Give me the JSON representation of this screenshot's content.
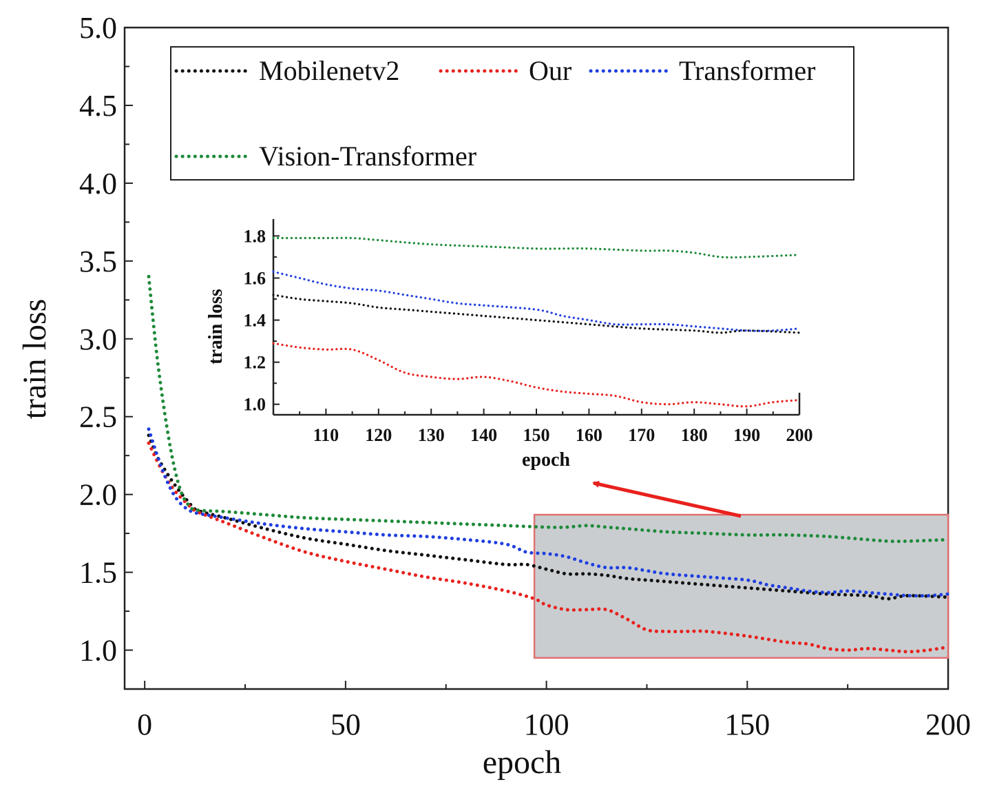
{
  "chart_data": [
    {
      "id": "main",
      "type": "line",
      "title": "",
      "xlabel": "epoch",
      "ylabel": "train loss",
      "xlim": [
        -5,
        200
      ],
      "ylim": [
        0.75,
        5.0
      ],
      "xticks": [
        "0",
        "50",
        "100",
        "150",
        "200"
      ],
      "yticks": [
        "1.0",
        "1.5",
        "2.0",
        "2.5",
        "3.0",
        "3.5",
        "4.0",
        "4.5",
        "5.0"
      ],
      "legend": {
        "placement": "top",
        "entries": [
          "Mobilenetv2",
          "Our",
          "Transformer",
          "Vision-Transformer"
        ]
      },
      "highlight_region": {
        "x": [
          97,
          200
        ],
        "y": [
          0.95,
          1.87
        ]
      },
      "series": [
        {
          "name": "Mobilenetv2",
          "color": "#111111",
          "x": [
            1,
            3,
            5,
            7,
            9,
            11,
            13,
            20,
            30,
            40,
            50,
            60,
            70,
            80,
            90,
            95,
            100,
            105,
            110,
            115,
            120,
            125,
            130,
            140,
            150,
            160,
            170,
            180,
            185,
            190,
            200
          ],
          "y": [
            2.38,
            2.25,
            2.16,
            2.08,
            2.01,
            1.95,
            1.9,
            1.85,
            1.78,
            1.72,
            1.68,
            1.64,
            1.61,
            1.58,
            1.55,
            1.55,
            1.52,
            1.49,
            1.49,
            1.48,
            1.46,
            1.45,
            1.44,
            1.42,
            1.4,
            1.38,
            1.36,
            1.35,
            1.33,
            1.35,
            1.34
          ]
        },
        {
          "name": "Our",
          "color": "#e8211d",
          "x": [
            1,
            3,
            5,
            7,
            9,
            11,
            13,
            20,
            30,
            40,
            50,
            60,
            70,
            80,
            90,
            97,
            100,
            105,
            110,
            115,
            120,
            125,
            130,
            135,
            140,
            150,
            160,
            165,
            170,
            175,
            180,
            185,
            190,
            195,
            200
          ],
          "y": [
            2.33,
            2.22,
            2.12,
            2.04,
            1.98,
            1.93,
            1.89,
            1.82,
            1.72,
            1.63,
            1.57,
            1.52,
            1.47,
            1.43,
            1.38,
            1.33,
            1.29,
            1.26,
            1.26,
            1.26,
            1.2,
            1.13,
            1.12,
            1.12,
            1.12,
            1.09,
            1.05,
            1.04,
            1.01,
            1.0,
            1.01,
            1.0,
            0.99,
            1.0,
            1.02
          ]
        },
        {
          "name": "Transformer",
          "color": "#1f3fe0",
          "x": [
            1,
            3,
            5,
            7,
            9,
            11,
            13,
            20,
            30,
            40,
            50,
            60,
            70,
            80,
            90,
            95,
            100,
            105,
            110,
            115,
            120,
            125,
            130,
            140,
            150,
            155,
            160,
            165,
            170,
            175,
            180,
            185,
            190,
            195,
            200
          ],
          "y": [
            2.42,
            2.26,
            2.12,
            2.01,
            1.94,
            1.9,
            1.88,
            1.85,
            1.81,
            1.78,
            1.76,
            1.74,
            1.73,
            1.71,
            1.68,
            1.63,
            1.62,
            1.6,
            1.56,
            1.53,
            1.53,
            1.51,
            1.49,
            1.47,
            1.45,
            1.42,
            1.4,
            1.38,
            1.37,
            1.38,
            1.37,
            1.36,
            1.35,
            1.35,
            1.36
          ]
        },
        {
          "name": "Vision-Transformer",
          "color": "#1e8a3a",
          "x": [
            1,
            3,
            5,
            7,
            9,
            11,
            13,
            20,
            30,
            40,
            50,
            60,
            70,
            80,
            90,
            100,
            105,
            110,
            115,
            120,
            130,
            140,
            150,
            155,
            160,
            170,
            180,
            185,
            190,
            200
          ],
          "y": [
            3.4,
            2.9,
            2.52,
            2.22,
            2.02,
            1.93,
            1.9,
            1.89,
            1.87,
            1.85,
            1.84,
            1.83,
            1.82,
            1.81,
            1.8,
            1.79,
            1.79,
            1.8,
            1.79,
            1.78,
            1.76,
            1.75,
            1.74,
            1.74,
            1.74,
            1.73,
            1.71,
            1.7,
            1.7,
            1.71
          ]
        }
      ]
    },
    {
      "id": "inset",
      "type": "line",
      "title": "",
      "xlabel": "epoch",
      "ylabel": "train loss",
      "xlim": [
        100,
        200
      ],
      "ylim": [
        0.95,
        1.88
      ],
      "xticks": [
        "110",
        "120",
        "130",
        "140",
        "150",
        "160",
        "170",
        "180",
        "190",
        "200"
      ],
      "yticks": [
        "1.0",
        "1.2",
        "1.4",
        "1.6",
        "1.8"
      ],
      "series": [
        {
          "name": "Mobilenetv2",
          "color": "#111111",
          "x": [
            100,
            105,
            110,
            115,
            120,
            125,
            130,
            140,
            150,
            160,
            170,
            180,
            185,
            190,
            200
          ],
          "y": [
            1.52,
            1.5,
            1.49,
            1.48,
            1.46,
            1.45,
            1.44,
            1.42,
            1.4,
            1.38,
            1.36,
            1.35,
            1.34,
            1.35,
            1.34
          ]
        },
        {
          "name": "Our",
          "color": "#e8211d",
          "x": [
            100,
            105,
            110,
            115,
            120,
            125,
            130,
            135,
            140,
            145,
            150,
            155,
            160,
            165,
            170,
            175,
            180,
            185,
            190,
            195,
            200
          ],
          "y": [
            1.29,
            1.27,
            1.26,
            1.26,
            1.21,
            1.15,
            1.13,
            1.12,
            1.13,
            1.11,
            1.08,
            1.06,
            1.05,
            1.04,
            1.01,
            1.0,
            1.01,
            1.0,
            0.99,
            1.01,
            1.02
          ]
        },
        {
          "name": "Transformer",
          "color": "#1f3fe0",
          "x": [
            100,
            105,
            110,
            115,
            120,
            125,
            130,
            135,
            140,
            150,
            155,
            160,
            165,
            170,
            175,
            180,
            185,
            190,
            195,
            200
          ],
          "y": [
            1.63,
            1.6,
            1.57,
            1.55,
            1.54,
            1.52,
            1.5,
            1.48,
            1.47,
            1.45,
            1.42,
            1.4,
            1.38,
            1.38,
            1.38,
            1.37,
            1.36,
            1.35,
            1.35,
            1.36
          ]
        },
        {
          "name": "Vision-Transformer",
          "color": "#1e8a3a",
          "x": [
            100,
            110,
            115,
            120,
            130,
            140,
            150,
            155,
            160,
            170,
            175,
            180,
            185,
            190,
            200
          ],
          "y": [
            1.79,
            1.79,
            1.79,
            1.78,
            1.76,
            1.75,
            1.74,
            1.74,
            1.74,
            1.73,
            1.73,
            1.72,
            1.7,
            1.7,
            1.71
          ]
        }
      ]
    }
  ]
}
